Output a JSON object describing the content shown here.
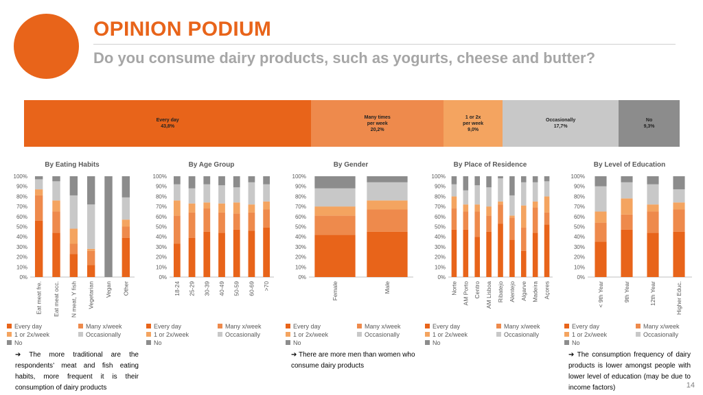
{
  "header": {
    "title": "OPINION PODIUM",
    "subtitle": "Do you consume dairy products, such as yogurts, cheese and butter?"
  },
  "colors": {
    "every_day": "#E8641A",
    "many_x_week": "#EE8A4C",
    "one_or_two_x_week": "#F4A460",
    "occasionally": "#C8C8C8",
    "no": "#8C8C8C"
  },
  "overall": {
    "segments": [
      {
        "label": "Every day",
        "value_text": "43,8%",
        "value": 43.8,
        "color": "#E8641A"
      },
      {
        "label": "Many times per week",
        "value_text": "20,2%",
        "value": 20.2,
        "color": "#EE8A4C"
      },
      {
        "label": "1 or 2x per week",
        "value_text": "9,0%",
        "value": 9.0,
        "color": "#F4A460"
      },
      {
        "label": "Occasionally",
        "value_text": "17,7%",
        "value": 17.7,
        "color": "#C8C8C8"
      },
      {
        "label": "No",
        "value_text": "9,3%",
        "value": 9.3,
        "color": "#8C8C8C"
      }
    ]
  },
  "legend_labels": [
    "Every day",
    "Many x/week",
    "1 or 2x/week",
    "Occasionally",
    "No"
  ],
  "chart_data": [
    {
      "type": "bar",
      "stacked": true,
      "title": "By Eating Habits",
      "categories": [
        "Eat meat fre.",
        "Eat meat occ.",
        "N meat, Y fish",
        "Vegetarian",
        "Vegan",
        "Other"
      ],
      "series": [
        {
          "name": "Every day",
          "values": [
            56,
            44,
            23,
            12,
            0,
            39
          ]
        },
        {
          "name": "Many x/week",
          "values": [
            25,
            21,
            10,
            14,
            0,
            11
          ]
        },
        {
          "name": "1 or 2x/week",
          "values": [
            6,
            11,
            15,
            2,
            0,
            7
          ]
        },
        {
          "name": "Occasionally",
          "values": [
            10,
            19,
            33,
            44,
            0,
            22
          ]
        },
        {
          "name": "No",
          "values": [
            3,
            5,
            19,
            28,
            100,
            21
          ]
        }
      ],
      "yticks": [
        "0%",
        "10%",
        "20%",
        "30%",
        "40%",
        "50%",
        "60%",
        "70%",
        "80%",
        "90%",
        "100%"
      ],
      "ylim": [
        0,
        100
      ],
      "legend_position": "bottom"
    },
    {
      "type": "bar",
      "stacked": true,
      "title": "By Age Group",
      "categories": [
        "18-24",
        "25-29",
        "30-39",
        "40-49",
        "50-59",
        "60-69",
        ">70"
      ],
      "series": [
        {
          "name": "Every day",
          "values": [
            33,
            39,
            45,
            44,
            47,
            46,
            49
          ]
        },
        {
          "name": "Many x/week",
          "values": [
            28,
            25,
            23,
            20,
            16,
            18,
            18
          ]
        },
        {
          "name": "1 or 2x/week",
          "values": [
            15,
            9,
            6,
            9,
            11,
            8,
            8
          ]
        },
        {
          "name": "Occasionally",
          "values": [
            16,
            15,
            18,
            18,
            15,
            22,
            17
          ]
        },
        {
          "name": "No",
          "values": [
            8,
            12,
            8,
            9,
            11,
            6,
            8
          ]
        }
      ],
      "yticks": [
        "0%",
        "10%",
        "20%",
        "30%",
        "40%",
        "50%",
        "60%",
        "70%",
        "80%",
        "90%",
        "100%"
      ],
      "ylim": [
        0,
        100
      ],
      "legend_position": "bottom"
    },
    {
      "type": "bar",
      "stacked": true,
      "title": "By Gender",
      "categories": [
        "Female",
        "Male"
      ],
      "series": [
        {
          "name": "Every day",
          "values": [
            42,
            45
          ]
        },
        {
          "name": "Many x/week",
          "values": [
            19,
            22
          ]
        },
        {
          "name": "1 or 2x/week",
          "values": [
            9,
            9
          ]
        },
        {
          "name": "Occasionally",
          "values": [
            18,
            18
          ]
        },
        {
          "name": "No",
          "values": [
            12,
            6
          ]
        }
      ],
      "yticks": [
        "0%",
        "10%",
        "20%",
        "30%",
        "40%",
        "50%",
        "60%",
        "70%",
        "80%",
        "90%",
        "100%"
      ],
      "ylim": [
        0,
        100
      ],
      "legend_position": "bottom"
    },
    {
      "type": "bar",
      "stacked": true,
      "title": "By Place of Residence",
      "categories": [
        "Norte",
        "AM Porto",
        "Centro",
        "AM Lisboa",
        "Ribatejo",
        "Alentejo",
        "Algarve",
        "Madeira",
        "Açores"
      ],
      "series": [
        {
          "name": "Every day",
          "values": [
            47,
            47,
            40,
            45,
            53,
            37,
            26,
            44,
            52
          ]
        },
        {
          "name": "Many x/week",
          "values": [
            21,
            18,
            25,
            16,
            19,
            22,
            23,
            25,
            12
          ]
        },
        {
          "name": "1 or 2x/week",
          "values": [
            12,
            7,
            7,
            9,
            3,
            2,
            22,
            6,
            16
          ]
        },
        {
          "name": "Occasionally",
          "values": [
            12,
            14,
            19,
            19,
            23,
            20,
            23,
            19,
            15
          ]
        },
        {
          "name": "No",
          "values": [
            8,
            14,
            9,
            11,
            2,
            19,
            6,
            6,
            5
          ]
        }
      ],
      "yticks": [
        "0%",
        "10%",
        "20%",
        "30%",
        "40%",
        "50%",
        "60%",
        "70%",
        "80%",
        "90%",
        "100%"
      ],
      "ylim": [
        0,
        100
      ],
      "legend_position": "bottom"
    },
    {
      "type": "bar",
      "stacked": true,
      "title": "By Level of Education",
      "categories": [
        "< 9th Year",
        "9th Year",
        "12th Year",
        "Higher Educ."
      ],
      "series": [
        {
          "name": "Every day",
          "values": [
            35,
            47,
            44,
            45
          ]
        },
        {
          "name": "Many x/week",
          "values": [
            19,
            15,
            21,
            22
          ]
        },
        {
          "name": "1 or 2x/week",
          "values": [
            11,
            16,
            7,
            7
          ]
        },
        {
          "name": "Occasionally",
          "values": [
            25,
            16,
            20,
            13
          ]
        },
        {
          "name": "No",
          "values": [
            10,
            6,
            8,
            13
          ]
        }
      ],
      "yticks": [
        "0%",
        "10%",
        "20%",
        "30%",
        "40%",
        "50%",
        "60%",
        "70%",
        "80%",
        "90%",
        "100%"
      ],
      "ylim": [
        0,
        100
      ],
      "legend_position": "bottom"
    }
  ],
  "notes": {
    "eating": "➔ The more traditional are the respondents’ meat and fish eating habits, more frequent it is their consumption of dairy products",
    "gender": "➔ There are more men than women who consume dairy products",
    "education": "➔ The consumption frequency of dairy products is lower amongst people with lower level of education (may be due to income factors)"
  },
  "page_number": "14"
}
